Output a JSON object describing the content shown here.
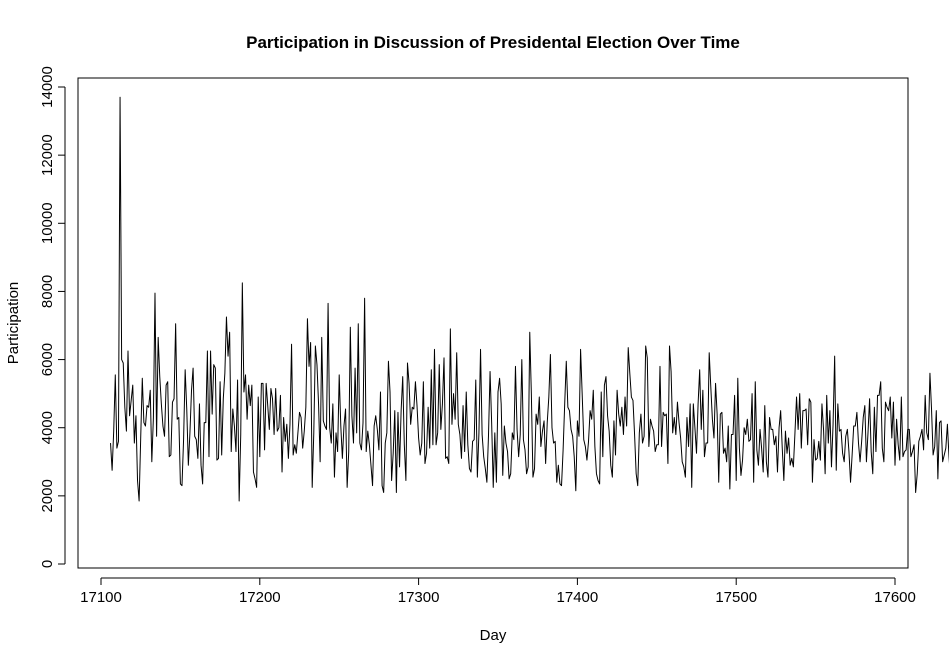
{
  "chart_data": {
    "type": "line",
    "title": "Participation in Discussion of Presidental Election Over Time",
    "xlabel": "Day",
    "ylabel": "Participation",
    "xlim": [
      17100,
      17600
    ],
    "ylim": [
      0,
      14000
    ],
    "x_ticks": [
      "17100",
      "17200",
      "17300",
      "17400",
      "17500",
      "17600"
    ],
    "y_ticks": [
      "0",
      "2000",
      "4000",
      "6000",
      "8000",
      "10000",
      "12000",
      "14000"
    ],
    "grid": false,
    "line_color": "#000000",
    "x_start": 17106,
    "y": [
      3550,
      2750,
      3900,
      5550,
      3400,
      3600,
      13700,
      6000,
      5900,
      4600,
      3900,
      6250,
      4350,
      4800,
      5250,
      3550,
      4350,
      2450,
      1850,
      3700,
      5450,
      4150,
      4050,
      4650,
      4600,
      5100,
      3000,
      4300,
      7950,
      3750,
      6650,
      5500,
      4700,
      4050,
      3750,
      5250,
      5350,
      3150,
      3200,
      4750,
      4850,
      7050,
      4250,
      4300,
      2350,
      2300,
      3650,
      5700,
      4550,
      2900,
      3850,
      5100,
      5750,
      3750,
      3650,
      3100,
      4700,
      2900,
      2350,
      4150,
      4150,
      6250,
      3150,
      6250,
      4400,
      5850,
      5750,
      3050,
      3100,
      5350,
      3200,
      4850,
      5600,
      7250,
      6100,
      6800,
      3300,
      4550,
      4050,
      3300,
      5400,
      1850,
      3800,
      8250,
      5050,
      5550,
      4250,
      5250,
      4650,
      5250,
      2700,
      2500,
      2250,
      4900,
      3150,
      5300,
      5300,
      3350,
      5300,
      4650,
      3950,
      5150,
      4850,
      3800,
      5150,
      3900,
      4000,
      4950,
      2700,
      4300,
      3600,
      4100,
      3100,
      4100,
      6450,
      3200,
      3500,
      3250,
      3850,
      4450,
      4300,
      3400,
      3900,
      4600,
      7200,
      5800,
      6500,
      2250,
      3850,
      6400,
      5850,
      4700,
      3000,
      6650,
      4200,
      4050,
      3950,
      7650,
      4000,
      3550,
      4700,
      2550,
      3850,
      3300,
      5550,
      4050,
      3100,
      4050,
      4550,
      2250,
      3300,
      6950,
      4350,
      3550,
      5750,
      3850,
      7050,
      3550,
      3350,
      4150,
      7800,
      3300,
      3900,
      3500,
      2900,
      2300,
      4050,
      4350,
      3950,
      3350,
      5050,
      2300,
      2100,
      3550,
      3850,
      5950,
      5050,
      2450,
      3250,
      4500,
      2100,
      4450,
      2850,
      4500,
      5500,
      3500,
      2450,
      5900,
      5300,
      4100,
      4600,
      4550,
      5350,
      4650,
      3700,
      3200,
      3550,
      5350,
      2950,
      3250,
      4600,
      3400,
      5700,
      3500,
      6300,
      3500,
      3850,
      5850,
      3950,
      4700,
      6050,
      3100,
      3150,
      2950,
      6900,
      4100,
      5000,
      4250,
      6200,
      4100,
      3800,
      3100,
      4650,
      3300,
      5050,
      3500,
      2800,
      2700,
      3600,
      3650,
      5400,
      2550,
      3850,
      6300,
      3800,
      3150,
      2800,
      2400,
      3750,
      5650,
      4150,
      2250,
      3850,
      2400,
      5050,
      5450,
      4700,
      2600,
      4050,
      3550,
      3300,
      2500,
      2650,
      3850,
      3650,
      5800,
      3950,
      3150,
      3800,
      6000,
      3650,
      3350,
      2650,
      2850,
      6800,
      5000,
      2550,
      2800,
      4400,
      4100,
      4900,
      3450,
      3900,
      4200,
      2950,
      4150,
      4900,
      6150,
      4000,
      3550,
      3600,
      2400,
      2900,
      2350,
      2300,
      3350,
      4700,
      5950,
      4600,
      4500,
      3950,
      3750,
      3150,
      2150,
      4200,
      3750,
      6300,
      5000,
      3650,
      3450,
      3050,
      3600,
      4500,
      4250,
      5100,
      3450,
      2650,
      2450,
      2350,
      5050,
      3150,
      5250,
      5500,
      4350,
      3900,
      2900,
      2550,
      4200,
      3200,
      5100,
      4400,
      4050,
      4600,
      3800,
      4900,
      4050,
      6350,
      5600,
      4900,
      4800,
      3800,
      2650,
      2300,
      3850,
      4400,
      3550,
      3750,
      6400,
      6050,
      3450,
      4250,
      4050,
      3900,
      3300,
      3500,
      3500,
      5800,
      3450,
      4450,
      4350,
      4400,
      2950,
      6400,
      5650,
      3850,
      4300,
      3800,
      4750,
      4150,
      3700,
      3000,
      2850,
      2550,
      4300,
      3450,
      4700,
      2250,
      4700,
      4000,
      3250,
      4700,
      5700,
      3950,
      5100,
      3150,
      3550,
      3550,
      6200,
      5200,
      4250,
      3700,
      5300,
      4400,
      2400,
      4400,
      4450,
      3250,
      3400,
      3000,
      4050,
      2200,
      3800,
      3800,
      4950,
      2450,
      5450,
      3400,
      2600,
      3050,
      4000,
      3800,
      4250,
      3600,
      3650,
      5000,
      2400,
      5350,
      3350,
      2900,
      3950,
      3400,
      2700,
      4650,
      3000,
      2550,
      4300,
      3950,
      3950,
      3500,
      3750,
      2700,
      4000,
      4500,
      3400,
      2450,
      3900,
      3250,
      3700,
      2900,
      3100,
      2850,
      3850,
      4900,
      3950,
      5000,
      3400,
      4500,
      4500,
      4550,
      3500,
      4850,
      4750,
      2400,
      3650,
      3050,
      3100,
      3600,
      3050,
      4700,
      3950,
      2650,
      4950,
      3550,
      4500,
      2850,
      4100,
      6100,
      2750,
      4700,
      3900,
      3950,
      3250,
      3000,
      3750,
      3950,
      3300,
      2400,
      3200,
      4050,
      4050,
      4450,
      3550,
      3000,
      3600,
      4300,
      4650,
      3000,
      3850,
      4850,
      3300,
      2650,
      4600,
      3300,
      4950,
      4950,
      5350,
      3400,
      3000,
      4750,
      4600,
      4500,
      4900,
      3700,
      4750,
      2900,
      4250,
      3500,
      3050,
      4900,
      3150,
      3300,
      3350,
      3950,
      3950,
      3150,
      3300,
      3500,
      2100,
      2650,
      3600,
      3750,
      3950,
      3350,
      4950,
      3850,
      3650,
      5600,
      4550,
      3200,
      3450,
      4500,
      2500,
      4150,
      4200,
      3000,
      3200,
      3400,
      4100,
      3150,
      2500,
      3750,
      3900,
      4550,
      4800,
      4300,
      4350,
      3900,
      3550,
      3600,
      3250,
      4200,
      4450,
      3200,
      2500,
      3550,
      2500,
      5000,
      3400,
      3450,
      2950,
      4750,
      3050,
      2800,
      4200,
      2400,
      3600,
      3750,
      3700,
      3850,
      3500,
      3150,
      4300,
      3700,
      4750,
      2550,
      2850,
      3350,
      4800,
      3150,
      3050,
      4000,
      4650,
      2200,
      3650,
      3550,
      4000,
      4300,
      3700,
      5200,
      3850,
      2900,
      4300,
      2350,
      4900,
      4550,
      4650,
      3350,
      2750,
      3650,
      3500,
      2650,
      2350,
      4550,
      4800,
      4150,
      5400,
      4600,
      2700,
      3550,
      3950,
      2750,
      3600,
      4850,
      3600,
      4350,
      3300,
      4900,
      5000,
      3550,
      4600,
      3150,
      4500,
      2750,
      3200
    ]
  }
}
